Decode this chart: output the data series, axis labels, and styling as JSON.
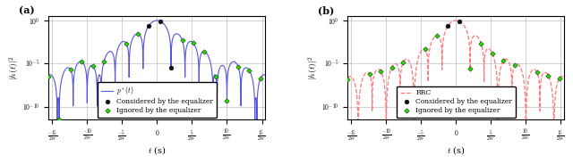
{
  "figsize": [
    6.4,
    1.84
  ],
  "dpi": 100,
  "panel_a_label": "(a)",
  "panel_b_label": "(b)",
  "ylabel": "$|h(t)|^2$",
  "xlabel": "$t$ (s)",
  "xlim": [
    -7.75,
    7.75
  ],
  "ylim_low": 3e-12,
  "ylim_high": 3.0,
  "xtick_positions": [
    -7.5,
    -5.0,
    -2.5,
    0.0,
    2.5,
    5.0,
    7.5
  ],
  "xtick_labels": [
    "$\\frac{-15}{2W}$",
    "$\\frac{-10}{2W}$",
    "$\\frac{-5}{2W}$",
    "$0$",
    "$\\frac{5}{2W}$",
    "$\\frac{10}{2W}$",
    "$\\frac{15}{2W}$"
  ],
  "ytick_positions": [
    1.0,
    1e-05,
    1e-10
  ],
  "ytick_labels": [
    "$10^{0}$",
    "$10^{-5}$",
    "$10^{-10}$"
  ],
  "line_color_a": "#5555dd",
  "line_color_b": "#ff7777",
  "black_dot_color": "#111111",
  "green_dot_color": "#22dd00",
  "legend_fontsize": 5.5,
  "tick_fontsize": 5.5,
  "label_fontsize": 7,
  "panel_label_fontsize": 8,
  "considered_thresh_a": 1.2,
  "considered_thresh_b": 0.9,
  "tau": 0.8,
  "T": 1.0,
  "alpha_a": 0.35,
  "alpha_b": 0.5
}
